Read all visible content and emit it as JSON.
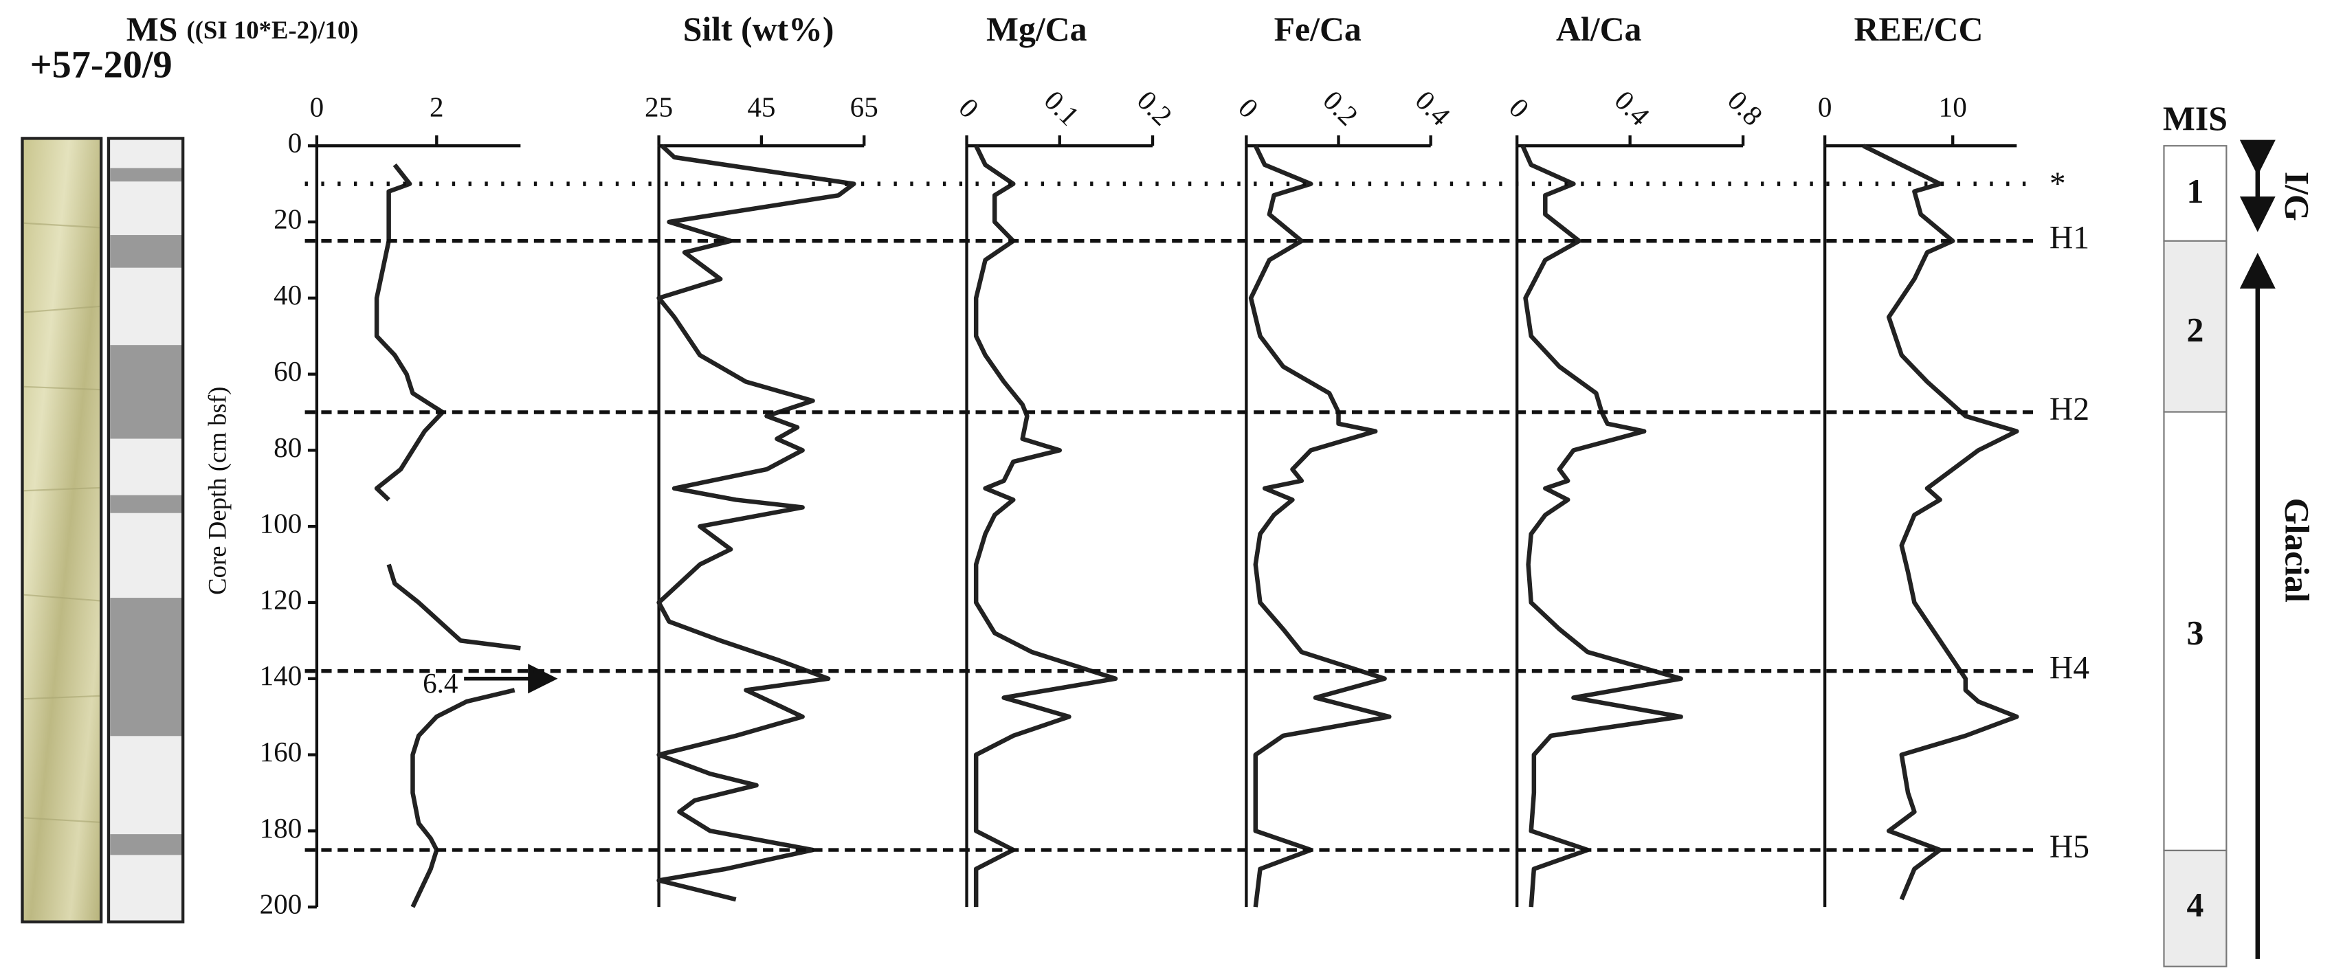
{
  "core_label": "+57-20/9",
  "chart_data": [
    {
      "type": "line",
      "title": "MS",
      "units": "((SI 10*E-2)/10)",
      "ylabel": "Core Depth (cm bsf)",
      "y_reversed": true,
      "ylim": [
        0,
        200
      ],
      "yticks": [
        0,
        20,
        40,
        60,
        80,
        100,
        120,
        140,
        160,
        180,
        200
      ],
      "xlim": [
        0,
        3.4
      ],
      "xticks": [
        0,
        2
      ],
      "color": "#222222",
      "depths": [
        5,
        10,
        12,
        25,
        40,
        50,
        55,
        60,
        65,
        70,
        75,
        85,
        90,
        93,
        100,
        110,
        115,
        120,
        130,
        132,
        137,
        143,
        146,
        150,
        155,
        160,
        170,
        178,
        182,
        185,
        190,
        200
      ],
      "values": [
        1.3,
        1.55,
        1.2,
        1.2,
        1.0,
        1.0,
        1.3,
        1.5,
        1.6,
        2.1,
        1.8,
        1.4,
        1.0,
        1.2,
        null,
        1.2,
        1.3,
        1.7,
        2.4,
        3.4,
        null,
        3.3,
        2.5,
        2.0,
        1.7,
        1.6,
        1.6,
        1.7,
        1.9,
        2.0,
        1.9,
        1.6
      ],
      "annotations": [
        {
          "text": "6.4",
          "depth": 140
        }
      ]
    },
    {
      "type": "line",
      "title": "Silt (wt%)",
      "y_reversed": true,
      "ylim": [
        0,
        200
      ],
      "xlim": [
        25,
        65
      ],
      "xticks": [
        25,
        45,
        65
      ],
      "color": "#222222",
      "depths": [
        0,
        3,
        10,
        13,
        20,
        25,
        28,
        35,
        40,
        45,
        55,
        62,
        67,
        71,
        74,
        77,
        80,
        85,
        90,
        93,
        95,
        100,
        106,
        110,
        120,
        125,
        130,
        135,
        140,
        143,
        150,
        155,
        160,
        165,
        168,
        172,
        175,
        180,
        185,
        190,
        193,
        198
      ],
      "values": [
        25.6,
        28,
        63,
        60,
        27,
        39,
        30,
        37,
        25,
        28,
        33,
        42,
        55,
        46,
        52,
        48,
        53,
        46,
        28,
        40,
        53,
        33,
        39,
        33,
        25,
        27,
        37,
        48,
        58,
        42,
        53,
        40,
        25,
        35,
        44,
        32,
        29,
        35,
        55,
        38,
        25,
        40
      ]
    },
    {
      "type": "line",
      "title": "Mg/Ca",
      "y_reversed": true,
      "ylim": [
        0,
        200
      ],
      "xlim": [
        0,
        0.2
      ],
      "xticks": [
        0,
        0.1,
        0.2
      ],
      "xtick_rotation": -45,
      "color": "#222222",
      "depths": [
        0,
        5,
        10,
        13,
        20,
        25,
        30,
        40,
        50,
        55,
        62,
        68,
        71,
        77,
        80,
        83,
        88,
        90,
        93,
        97,
        102,
        110,
        120,
        128,
        133,
        140,
        145,
        150,
        155,
        160,
        170,
        180,
        185,
        190,
        200
      ],
      "values": [
        0.01,
        0.02,
        0.05,
        0.03,
        0.03,
        0.05,
        0.02,
        0.01,
        0.01,
        0.02,
        0.04,
        0.06,
        0.065,
        0.06,
        0.1,
        0.05,
        0.04,
        0.02,
        0.05,
        0.03,
        0.02,
        0.01,
        0.01,
        0.03,
        0.07,
        0.16,
        0.04,
        0.11,
        0.05,
        0.01,
        0.01,
        0.01,
        0.05,
        0.01,
        0.01
      ]
    },
    {
      "type": "line",
      "title": "Fe/Ca",
      "y_reversed": true,
      "ylim": [
        0,
        200
      ],
      "xlim": [
        0,
        0.4
      ],
      "xticks": [
        0,
        0.2,
        0.4
      ],
      "xtick_rotation": -45,
      "color": "#222222",
      "depths": [
        0,
        5,
        10,
        13,
        18,
        25,
        30,
        40,
        50,
        58,
        65,
        70,
        73,
        75,
        80,
        85,
        88,
        90,
        93,
        97,
        102,
        110,
        120,
        127,
        133,
        140,
        145,
        150,
        155,
        160,
        170,
        180,
        185,
        190,
        200
      ],
      "values": [
        0.02,
        0.04,
        0.14,
        0.06,
        0.05,
        0.12,
        0.05,
        0.01,
        0.03,
        0.08,
        0.18,
        0.2,
        0.2,
        0.28,
        0.14,
        0.1,
        0.12,
        0.04,
        0.1,
        0.06,
        0.03,
        0.02,
        0.03,
        0.08,
        0.12,
        0.3,
        0.15,
        0.31,
        0.08,
        0.02,
        0.02,
        0.02,
        0.14,
        0.03,
        0.02
      ]
    },
    {
      "type": "line",
      "title": "Al/Ca",
      "y_reversed": true,
      "ylim": [
        0,
        200
      ],
      "xlim": [
        0,
        0.8
      ],
      "xticks": [
        0,
        0.4,
        0.8
      ],
      "xtick_rotation": -45,
      "color": "#222222",
      "depths": [
        0,
        5,
        10,
        13,
        18,
        25,
        30,
        40,
        50,
        58,
        65,
        70,
        73,
        75,
        80,
        85,
        88,
        90,
        93,
        97,
        102,
        110,
        120,
        127,
        133,
        140,
        145,
        150,
        155,
        160,
        170,
        180,
        185,
        190,
        200
      ],
      "values": [
        0.02,
        0.05,
        0.2,
        0.1,
        0.1,
        0.22,
        0.1,
        0.03,
        0.05,
        0.15,
        0.28,
        0.3,
        0.32,
        0.45,
        0.2,
        0.15,
        0.18,
        0.1,
        0.18,
        0.1,
        0.05,
        0.04,
        0.05,
        0.15,
        0.25,
        0.58,
        0.2,
        0.58,
        0.12,
        0.06,
        0.06,
        0.05,
        0.25,
        0.06,
        0.05
      ]
    },
    {
      "type": "line",
      "title": "REE/CC",
      "y_reversed": true,
      "ylim": [
        0,
        200
      ],
      "xlim": [
        0,
        15
      ],
      "xticks": [
        0,
        10
      ],
      "color": "#222222",
      "depths": [
        0,
        5,
        10,
        12,
        18,
        25,
        28,
        35,
        45,
        55,
        62,
        68,
        71,
        75,
        80,
        85,
        90,
        93,
        97,
        105,
        112,
        120,
        125,
        130,
        135,
        140,
        143,
        146,
        150,
        155,
        160,
        170,
        175,
        180,
        185,
        190,
        198
      ],
      "values": [
        3,
        6,
        9,
        7,
        7.5,
        10,
        8,
        7,
        5,
        6,
        8,
        10,
        11,
        15,
        12,
        10,
        8,
        9,
        7,
        6,
        6.5,
        7,
        8,
        9,
        10,
        11,
        11,
        12,
        15,
        11,
        6,
        6.5,
        7,
        5,
        9,
        7,
        6
      ]
    }
  ],
  "events": [
    {
      "label": "*",
      "depth": 10,
      "style": "dotted"
    },
    {
      "label": "H1",
      "depth": 25,
      "style": "dashed"
    },
    {
      "label": "H2",
      "depth": 70,
      "style": "dashed"
    },
    {
      "label": "H4",
      "depth": 138,
      "style": "dashed"
    },
    {
      "label": "H5",
      "depth": 185,
      "style": "dashed"
    }
  ],
  "mis": {
    "title": "MIS",
    "stages": [
      "1",
      "2",
      "3",
      "4"
    ]
  },
  "arrows": {
    "interglacial": "I/G",
    "glacial": "Glacial"
  }
}
